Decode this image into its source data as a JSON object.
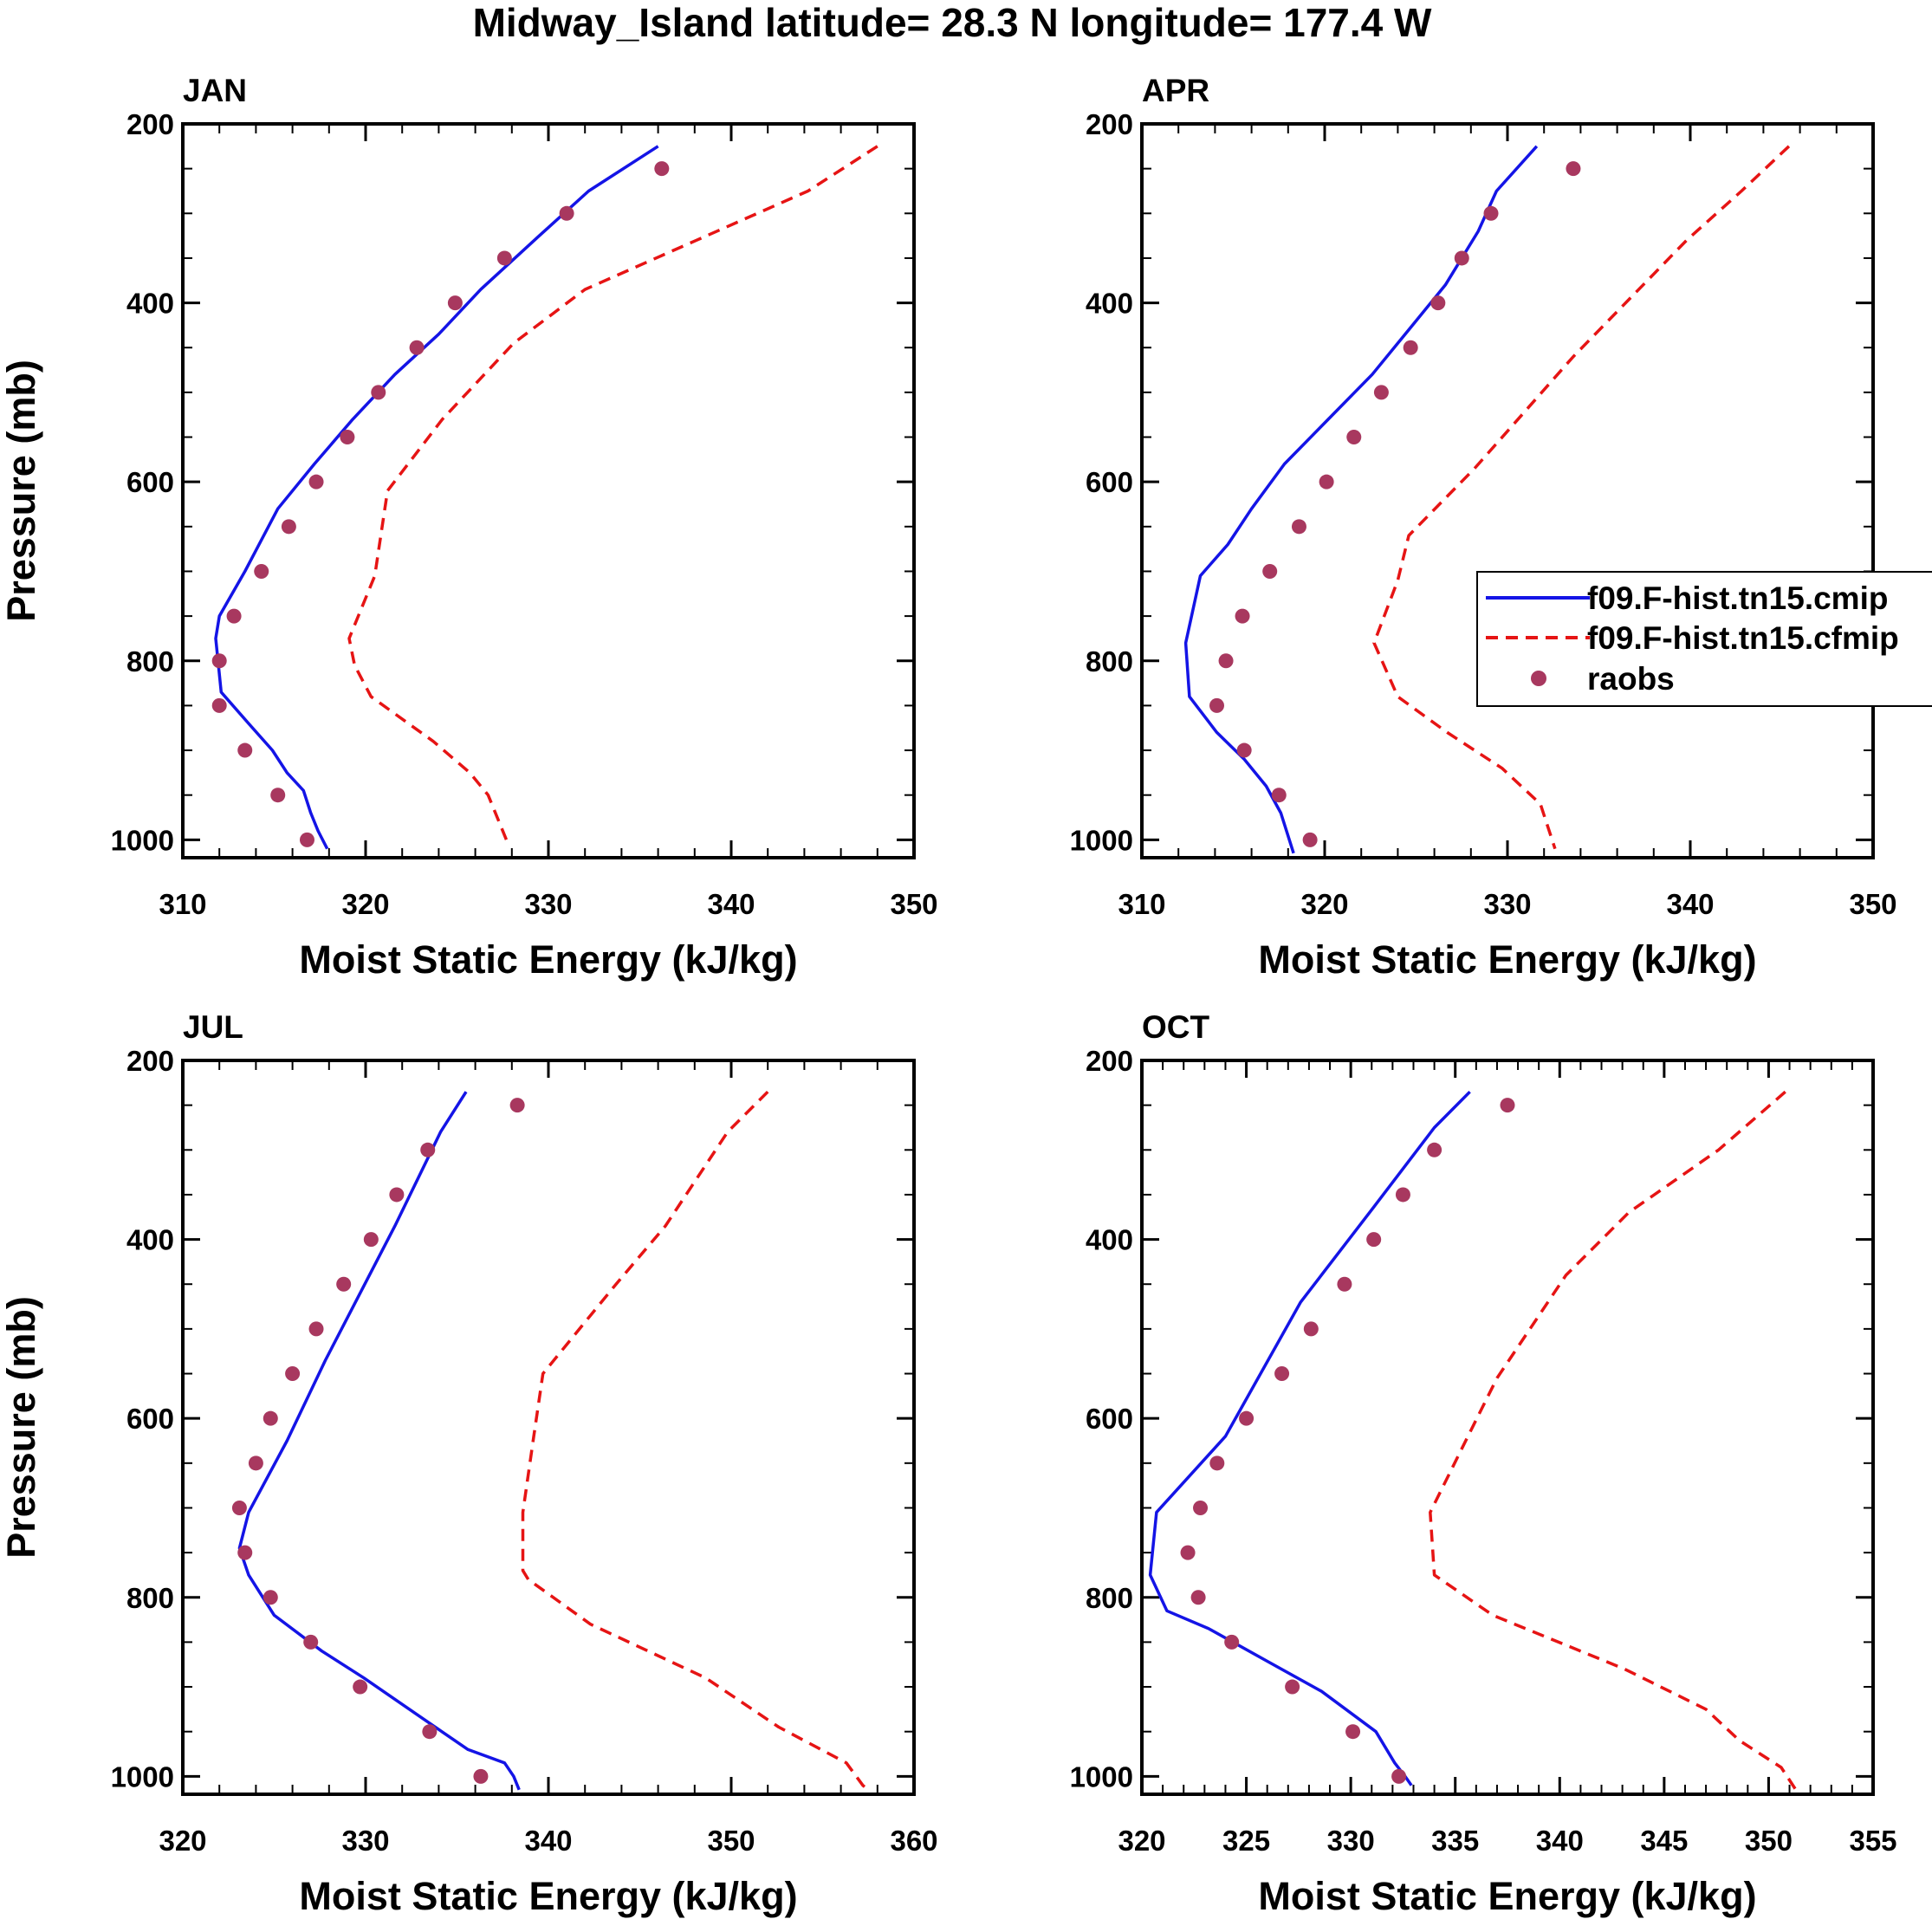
{
  "title": "Midway_Island  latitude= 28.3 N longitude= 177.4 W",
  "colors": {
    "cmip": "#1414e6",
    "cfmip": "#e61414",
    "raobs": "#a8385f",
    "axis": "#000000"
  },
  "legend": {
    "entries": [
      {
        "label": "f09.F-hist.tn15.cmip",
        "style": "solid-line",
        "color": "#1414e6"
      },
      {
        "label": "f09.F-hist.tn15.cfmip",
        "style": "dashed-line",
        "color": "#e61414"
      },
      {
        "label": "raobs",
        "style": "marker",
        "color": "#a8385f"
      }
    ]
  },
  "chart_data": [
    {
      "type": "line",
      "panel": "JAN",
      "xlabel": "Moist Static Energy (kJ/kg)",
      "ylabel": "Pressure (mb)",
      "xlim": [
        310,
        350
      ],
      "xticks": [
        310,
        320,
        330,
        340,
        350
      ],
      "xminor": 2,
      "ylim": [
        200,
        1020
      ],
      "yticks": [
        200,
        400,
        600,
        800,
        1000
      ],
      "ytick_labels": [
        "200",
        "400",
        "600",
        "800",
        "1000"
      ],
      "yminor": 50,
      "series": [
        {
          "name": "f09.F-hist.tn15.cmip",
          "style": "solid",
          "x": [
            336.0,
            332.2,
            329.5,
            326.3,
            324.0,
            321.6,
            319.3,
            317.2,
            315.2,
            313.4,
            312.0,
            311.8,
            312.1,
            313.6,
            314.9,
            315.7,
            316.6,
            317.0,
            317.4,
            317.9
          ],
          "y": [
            225,
            275,
            325,
            385,
            435,
            480,
            530,
            580,
            630,
            700,
            750,
            775,
            835,
            870,
            900,
            925,
            945,
            970,
            990,
            1010
          ]
        },
        {
          "name": "f09.F-hist.tn15.cfmip",
          "style": "dashed",
          "x": [
            348.0,
            344.2,
            338.1,
            332.0,
            328.1,
            324.2,
            321.2,
            320.5,
            319.1,
            319.4,
            320.3,
            323.7,
            325.7,
            326.7,
            327.8
          ],
          "y": [
            225,
            275,
            330,
            385,
            445,
            530,
            610,
            705,
            775,
            805,
            840,
            890,
            925,
            950,
            1005
          ]
        },
        {
          "name": "raobs",
          "style": "marker",
          "x": [
            336.2,
            331.0,
            327.6,
            324.9,
            322.8,
            320.7,
            319.0,
            317.3,
            315.8,
            314.3,
            312.8,
            312.0,
            312.0,
            313.4,
            315.2,
            316.8
          ],
          "y": [
            250,
            300,
            350,
            400,
            450,
            500,
            550,
            600,
            650,
            700,
            750,
            800,
            850,
            900,
            950,
            1000
          ]
        }
      ]
    },
    {
      "type": "line",
      "panel": "APR",
      "xlabel": "Moist Static Energy (kJ/kg)",
      "ylabel": "",
      "xlim": [
        310,
        350
      ],
      "xticks": [
        310,
        320,
        330,
        340,
        350
      ],
      "xminor": 2,
      "ylim": [
        200,
        1020
      ],
      "yticks": [
        200,
        400,
        600,
        800,
        1000
      ],
      "ytick_labels": [
        "200",
        "400",
        "600",
        "800",
        "1000"
      ],
      "yminor": 50,
      "series": [
        {
          "name": "f09.F-hist.tn15.cmip",
          "style": "solid",
          "x": [
            331.6,
            329.4,
            328.4,
            326.6,
            324.6,
            322.6,
            320.2,
            317.8,
            316.0,
            314.7,
            313.2,
            312.4,
            312.6,
            314.1,
            315.6,
            316.8,
            317.6,
            318.3
          ],
          "y": [
            225,
            275,
            320,
            380,
            430,
            480,
            530,
            580,
            630,
            670,
            705,
            780,
            840,
            880,
            910,
            940,
            970,
            1015
          ]
        },
        {
          "name": "f09.F-hist.tn15.cfmip",
          "style": "dashed",
          "x": [
            345.4,
            342.8,
            339.8,
            333.6,
            328.2,
            324.6,
            324.0,
            322.7,
            324.0,
            326.7,
            329.7,
            331.8,
            332.6
          ],
          "y": [
            225,
            275,
            330,
            460,
            585,
            660,
            710,
            780,
            840,
            880,
            920,
            960,
            1010
          ]
        },
        {
          "name": "raobs",
          "style": "marker",
          "x": [
            333.6,
            329.1,
            327.5,
            326.2,
            324.7,
            323.1,
            321.6,
            320.1,
            318.6,
            317.0,
            315.5,
            314.6,
            314.1,
            315.6,
            317.5,
            319.2
          ],
          "y": [
            250,
            300,
            350,
            400,
            450,
            500,
            550,
            600,
            650,
            700,
            750,
            800,
            850,
            900,
            950,
            1000
          ]
        }
      ]
    },
    {
      "type": "line",
      "panel": "JUL",
      "xlabel": "Moist Static Energy (kJ/kg)",
      "ylabel": "Pressure (mb)",
      "xlim": [
        320,
        360
      ],
      "xticks": [
        320,
        330,
        340,
        350,
        360
      ],
      "xminor": 2,
      "ylim": [
        200,
        1020
      ],
      "yticks": [
        200,
        400,
        600,
        800,
        1000
      ],
      "ytick_labels": [
        "200",
        "400",
        "600",
        "800",
        "1000"
      ],
      "yminor": 50,
      "series": [
        {
          "name": "f09.F-hist.tn15.cmip",
          "style": "solid",
          "x": [
            335.5,
            334.1,
            331.6,
            327.8,
            325.7,
            323.6,
            323.1,
            323.6,
            325.0,
            327.6,
            329.9,
            333.1,
            335.6,
            337.6,
            338.1,
            338.4
          ],
          "y": [
            235,
            280,
            385,
            535,
            625,
            705,
            745,
            775,
            820,
            860,
            890,
            935,
            970,
            985,
            1000,
            1015
          ]
        },
        {
          "name": "f09.F-hist.tn15.cfmip",
          "style": "dashed",
          "x": [
            352.0,
            349.8,
            346.4,
            343.7,
            339.7,
            339.2,
            338.6,
            338.6,
            338.9,
            342.3,
            348.6,
            352.6,
            356.3,
            357.2,
            357.5
          ],
          "y": [
            235,
            280,
            385,
            450,
            550,
            620,
            705,
            770,
            780,
            830,
            890,
            945,
            985,
            1010,
            1015
          ]
        },
        {
          "name": "raobs",
          "style": "marker",
          "x": [
            338.3,
            333.4,
            331.7,
            330.3,
            328.8,
            327.3,
            326.0,
            324.8,
            324.0,
            323.1,
            323.4,
            324.8,
            327.0,
            329.7,
            333.5,
            336.3
          ],
          "y": [
            250,
            300,
            350,
            400,
            450,
            500,
            550,
            600,
            650,
            700,
            750,
            800,
            850,
            900,
            950,
            1000
          ]
        }
      ]
    },
    {
      "type": "line",
      "panel": "OCT",
      "xlabel": "Moist Static Energy (kJ/kg)",
      "ylabel": "",
      "xlim": [
        320,
        355
      ],
      "xticks": [
        320,
        325,
        330,
        335,
        340,
        345,
        350,
        355
      ],
      "xminor": 1,
      "ylim": [
        200,
        1020
      ],
      "yticks": [
        200,
        400,
        600,
        800,
        1000
      ],
      "ytick_labels": [
        "200",
        "400",
        "600",
        "800",
        "1000"
      ],
      "yminor": 50,
      "series": [
        {
          "name": "f09.F-hist.tn15.cmip",
          "style": "solid",
          "x": [
            335.7,
            334.0,
            330.9,
            327.6,
            324.0,
            320.7,
            320.4,
            321.2,
            323.2,
            325.9,
            328.6,
            331.2,
            332.1,
            332.6,
            332.9
          ],
          "y": [
            235,
            275,
            370,
            470,
            620,
            705,
            775,
            815,
            835,
            870,
            905,
            950,
            985,
            1000,
            1010
          ]
        },
        {
          "name": "f09.F-hist.tn15.cfmip",
          "style": "dashed",
          "x": [
            350.8,
            347.6,
            343.3,
            340.3,
            337.0,
            335.5,
            333.8,
            334.0,
            336.8,
            343.1,
            347.0,
            348.6,
            350.6,
            351.3
          ],
          "y": [
            235,
            300,
            370,
            440,
            555,
            625,
            705,
            775,
            820,
            880,
            925,
            960,
            990,
            1015
          ]
        },
        {
          "name": "raobs",
          "style": "marker",
          "x": [
            337.5,
            334.0,
            332.5,
            331.1,
            329.7,
            328.1,
            326.7,
            325.0,
            323.6,
            322.8,
            322.2,
            322.7,
            324.3,
            327.2,
            330.1,
            332.3
          ],
          "y": [
            250,
            300,
            350,
            400,
            450,
            500,
            550,
            600,
            650,
            700,
            750,
            800,
            850,
            900,
            950,
            1000
          ]
        }
      ]
    }
  ]
}
